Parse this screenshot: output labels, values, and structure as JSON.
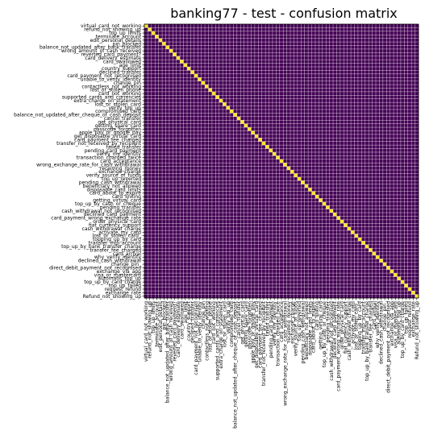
{
  "chart_data": {
    "type": "heatmap",
    "title": "banking77 - test - confusion matrix",
    "xlabel": "",
    "ylabel": "",
    "labels": [
      "virtual_card_not_working",
      "refund_not_showing_up",
      "top_up_limits",
      "terminate_account",
      "edit_personal_details",
      "pin_blocked",
      "balance_not_updated_after_bank_transfer",
      "wrong_amount_of_cash_received",
      "reverted_card_payment?",
      "card_delivery_estimate",
      "card_swallowed",
      "age_limit",
      "country_support",
      "declined_transfer",
      "card_payment_not_recognised",
      "unable_to_verify_identity",
      "change_pin",
      "contactless_not_working",
      "lost_or_stolen_phone",
      "card_not_working",
      "supported_cards_and_currencies",
      "extra_charge_on_statement",
      "lost_or_stolen_card",
      "verify_top_up",
      "compromised_card",
      "balance_not_updated_after_cheque_or_cash_deposit",
      "cancel_transfer",
      "get_physical_card",
      "getting_spare_card",
      "passcode_forgotten",
      "apple_pay_or_google_pay",
      "get_disposable_virtual_card",
      "card_payment_fee_charged",
      "transfer_not_received_by_recipient",
      "failed_transfer",
      "pending_card_payment",
      "verify_my_identity",
      "transaction_charged_twice",
      "card_acceptance",
      "wrong_exchange_rate_for_cash_withdrawal",
      "receiving_money",
      "exchange_charge",
      "verify_source_of_funds",
      "top_up_reverted",
      "pending_cash_withdrawal",
      "beneficiary_not_allowed",
      "disposable_card_limits",
      "card_about_to_expire",
      "card_linking",
      "getting_virtual_card",
      "top_up_by_cash_or_cheque",
      "pending_transfer",
      "cash_withdrawal_not_recognised",
      "declined_card_payment",
      "card_payment_wrong_exchange_rate",
      "order_physical_card",
      "fiat_currency_support",
      "cash_withdrawal_charge",
      "activate_my_card",
      "lost_or_stolen_card_",
      "topping_up_by_card",
      "transfer_into_account",
      "top_up_by_bank_transfer_charge",
      "transfer_fee_charged",
      "card_arrival",
      "why_verify_identity",
      "declined_cash_withdrawal",
      "change_pin_",
      "direct_debit_payment_not_recognised",
      "exchange_via_app",
      "visa_or_mastercard",
      "automatic_top_up",
      "top_up_by_card_charge",
      "top_up_failed",
      "request_refund",
      "exchange_rate",
      "Refund_not_showing_up"
    ],
    "diagonal_value": 40,
    "off_diagonal_value": 0,
    "colormap": "viridis",
    "colors": {
      "low": "#440154",
      "high": "#fde725",
      "mid": "#21918c",
      "grid": "#ffffff"
    },
    "grid": true,
    "legend": "none"
  }
}
